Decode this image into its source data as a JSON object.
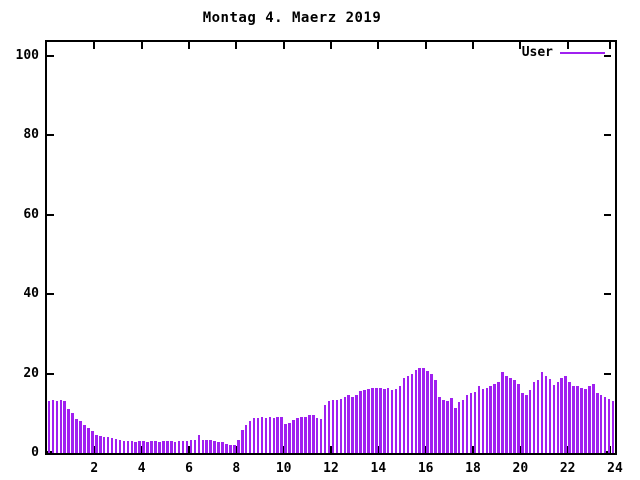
{
  "title": "Montag 4. Maerz 2019",
  "legend": {
    "label": "User",
    "position": "top-right-inside"
  },
  "colors": {
    "bar": "#a020f0",
    "axis": "#000000",
    "background": "#ffffff",
    "text": "#000000"
  },
  "chart_data": {
    "type": "bar",
    "title": "Montag 4. Maerz 2019",
    "series_name": "User",
    "xlabel": "",
    "ylabel": "",
    "x_unit": "hour of day",
    "x_start_time": "00:00",
    "interval_minutes": 10,
    "xlim": [
      0,
      24
    ],
    "ylim": [
      0,
      103.5
    ],
    "x_ticks": [
      2,
      4,
      6,
      8,
      10,
      12,
      14,
      16,
      18,
      20,
      22,
      24
    ],
    "y_ticks": [
      0,
      20,
      40,
      60,
      80,
      100
    ],
    "grid": false,
    "legend_position": "top-right-inside",
    "values": [
      13.2,
      13.4,
      13.1,
      13.3,
      13.2,
      11.2,
      10.1,
      8.6,
      8.0,
      7.0,
      6.2,
      5.6,
      4.6,
      4.4,
      4.1,
      4.0,
      3.8,
      3.6,
      3.2,
      3.1,
      3.0,
      3.0,
      2.9,
      3.0,
      3.0,
      2.9,
      3.0,
      3.0,
      2.9,
      3.0,
      3.0,
      3.0,
      2.9,
      3.0,
      3.0,
      3.0,
      3.3,
      3.2,
      4.6,
      3.4,
      3.3,
      3.4,
      3.0,
      2.9,
      2.8,
      2.2,
      2.1,
      2.1,
      3.4,
      5.9,
      7.1,
      8.0,
      8.8,
      8.8,
      9.0,
      8.8,
      9.2,
      8.9,
      9.0,
      9.2,
      7.3,
      7.6,
      8.2,
      8.8,
      9.0,
      9.1,
      9.7,
      9.7,
      8.8,
      8.5,
      12.0,
      13.2,
      13.3,
      13.3,
      13.5,
      14.0,
      14.5,
      14.2,
      14.5,
      15.5,
      15.8,
      16.2,
      16.4,
      16.3,
      16.4,
      16.2,
      16.4,
      16.0,
      16.2,
      16.8,
      18.9,
      19.5,
      20.0,
      21.0,
      21.4,
      21.5,
      20.6,
      19.8,
      18.3,
      14.0,
      13.4,
      13.2,
      13.9,
      11.3,
      12.8,
      13.4,
      14.6,
      15.2,
      15.3,
      16.8,
      16.2,
      16.4,
      17.0,
      17.5,
      18.0,
      20.3,
      19.5,
      19.0,
      18.3,
      17.5,
      15.2,
      14.5,
      15.8,
      17.8,
      18.3,
      20.3,
      19.3,
      18.6,
      17.2,
      17.8,
      19.0,
      19.3,
      18.0,
      17.0,
      16.8,
      16.5,
      16.2,
      17.0,
      17.3,
      15.0,
      14.5,
      14.0,
      13.5,
      13.0
    ]
  }
}
